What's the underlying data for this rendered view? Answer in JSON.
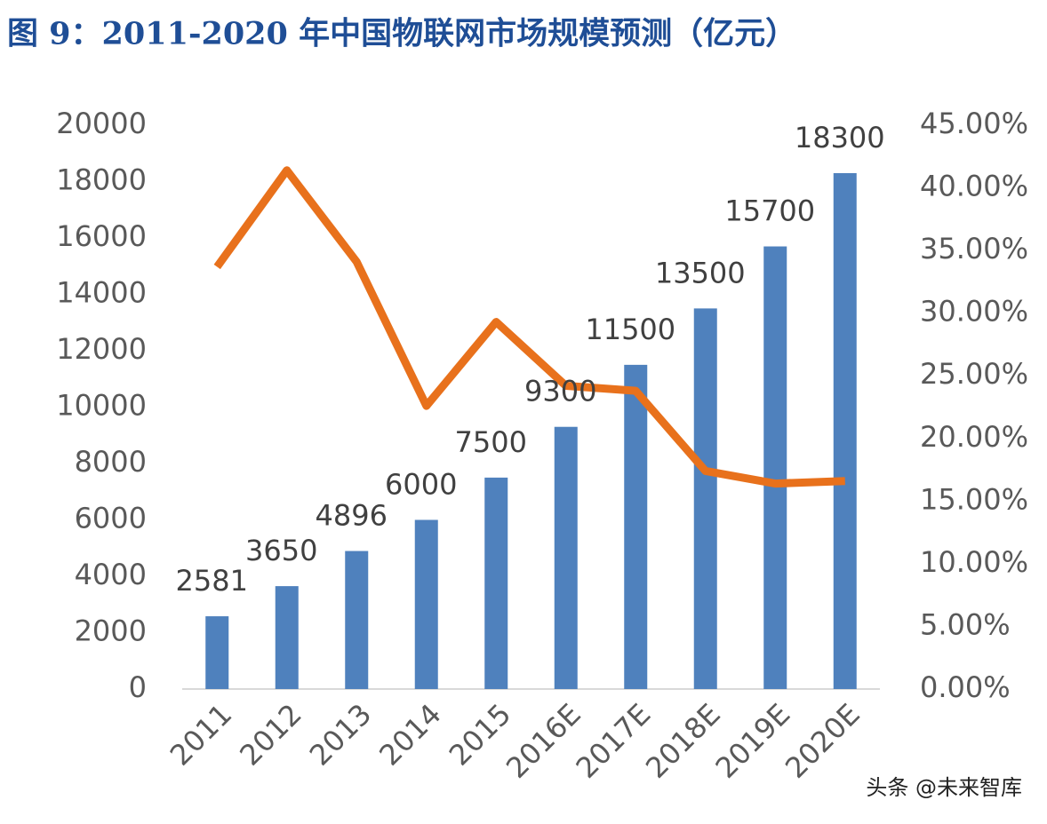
{
  "chart_data": {
    "type": "combo",
    "title": "图 9：2011-2020 年中国物联网市场规模预测（亿元）",
    "categories": [
      "2011",
      "2012",
      "2013",
      "2014",
      "2015",
      "2016E",
      "2017E",
      "2018E",
      "2019E",
      "2020E"
    ],
    "series": [
      {
        "type": "bar",
        "color": "#4f81bd",
        "values": [
          2581,
          3650,
          4896,
          6000,
          7500,
          9300,
          11500,
          13500,
          15700,
          18300
        ]
      },
      {
        "type": "line",
        "axis": "y2",
        "color": "#e8711c",
        "values": [
          33.7,
          41.4,
          34.1,
          22.6,
          29.3,
          24.2,
          23.8,
          17.4,
          16.4,
          16.6
        ]
      }
    ],
    "ylim": [
      0,
      20000
    ],
    "yticks": [
      0,
      2000,
      4000,
      6000,
      8000,
      10000,
      12000,
      14000,
      16000,
      18000,
      20000
    ],
    "y2lim": [
      0,
      45
    ],
    "y2ticks": [
      {
        "value": 0,
        "label": "0.00%"
      },
      {
        "value": 5,
        "label": "5.00%"
      },
      {
        "value": 10,
        "label": "10.00%"
      },
      {
        "value": 15,
        "label": "15.00%"
      },
      {
        "value": 20,
        "label": "20.00%"
      },
      {
        "value": 25,
        "label": "25.00%"
      },
      {
        "value": 30,
        "label": "30.00%"
      },
      {
        "value": 35,
        "label": "35.00%"
      },
      {
        "value": 40,
        "label": "40.00%"
      },
      {
        "value": 45,
        "label": "45.00%"
      }
    ],
    "watermark": "头条 @未来智库"
  }
}
